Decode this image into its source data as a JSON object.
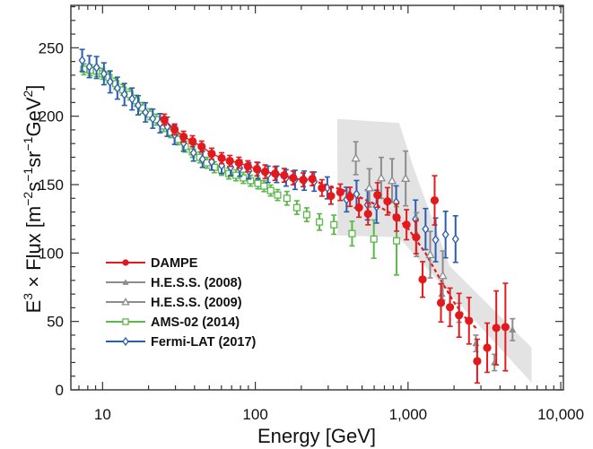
{
  "chart_data": {
    "type": "scatter",
    "title": "",
    "xlabel": "Energy [GeV]",
    "ylabel": {
      "base": "E",
      "exp": "3",
      "mid": " × Flux [m",
      "u1": "−2",
      "s": "s",
      "u2": "−1",
      "sr": "sr",
      "u3": "−1",
      "gev": "GeV",
      "u4": "2",
      "end": "]"
    },
    "xscale": "log",
    "xlim": [
      6.2,
      10400
    ],
    "ylim": [
      0,
      281
    ],
    "grid": false,
    "legend_position": "lower-left",
    "x_ticks": [
      {
        "value": 10,
        "label": "10"
      },
      {
        "value": 100,
        "label": "100"
      },
      {
        "value": 1000,
        "label": "1,000"
      },
      {
        "value": 10000,
        "label": "10,000"
      }
    ],
    "y_ticks": [
      {
        "value": 0,
        "label": "0"
      },
      {
        "value": 50,
        "label": "50"
      },
      {
        "value": 100,
        "label": "100"
      },
      {
        "value": 150,
        "label": "150"
      },
      {
        "value": 200,
        "label": "200"
      },
      {
        "value": 250,
        "label": "250"
      }
    ],
    "band": {
      "name": "H.E.S.S. systematic band",
      "color": "#e3e3e3",
      "polygon": [
        [
          344,
          198
        ],
        [
          875,
          195
        ],
        [
          1089,
          162
        ],
        [
          1870,
          90.5
        ],
        [
          6440,
          30.8
        ],
        [
          6440,
          5.2
        ],
        [
          864,
          111.5
        ],
        [
          346,
          112.9
        ]
      ]
    },
    "series": [
      {
        "name": "DAMPE",
        "color": "#e3191c",
        "marker": "filled-circle",
        "points": [
          [
            25.4,
            197.5,
            4
          ],
          [
            29.6,
            190.3,
            4
          ],
          [
            33.9,
            185.0,
            4
          ],
          [
            38.8,
            181.7,
            4
          ],
          [
            44.5,
            177.8,
            4
          ],
          [
            51.8,
            172.6,
            4
          ],
          [
            60.2,
            169.3,
            4
          ],
          [
            68.1,
            167.3,
            4
          ],
          [
            78.1,
            166.0,
            4
          ],
          [
            89.4,
            163.4,
            4
          ],
          [
            102.5,
            161.4,
            5
          ],
          [
            115.9,
            159.4,
            5
          ],
          [
            134.8,
            158.1,
            5
          ],
          [
            154.6,
            156.8,
            5
          ],
          [
            177.1,
            154.9,
            5
          ],
          [
            205.9,
            153.5,
            5
          ],
          [
            236.2,
            154.2,
            5
          ],
          [
            273,
            147.6,
            6
          ],
          [
            313,
            141.7,
            6
          ],
          [
            360,
            144.4,
            6
          ],
          [
            417,
            141.1,
            7
          ],
          [
            477,
            133.2,
            7
          ],
          [
            547,
            128.6,
            8
          ],
          [
            631,
            142.4,
            9
          ],
          [
            733,
            137.8,
            10
          ],
          [
            841,
            126.0,
            10
          ],
          [
            977,
            120.7,
            11
          ],
          [
            1129,
            111.5,
            12
          ],
          [
            1245,
            80.7,
            13
          ],
          [
            1493,
            138.5,
            18
          ],
          [
            1642,
            63.6,
            14
          ],
          [
            1882,
            60.4,
            14
          ],
          [
            2158,
            54.5,
            16
          ],
          [
            2506,
            50.5,
            17
          ],
          [
            2836,
            21.0,
            16
          ],
          [
            3297,
            30.8,
            18
          ],
          [
            3781,
            45.3,
            27
          ],
          [
            4339,
            45.9,
            32
          ]
        ]
      },
      {
        "name": "H.E.S.S. (2008)",
        "color": "#8c8c8c",
        "marker": "filled-triangle",
        "points": [
          [
            1663,
            70.2,
            7
          ],
          [
            2158,
            56.4,
            7
          ],
          [
            2780,
            34,
            6
          ],
          [
            3680,
            20,
            6
          ],
          [
            4830,
            44,
            8
          ]
        ]
      },
      {
        "name": "H.E.S.S. (2009)",
        "color": "#8c8c8c",
        "marker": "open-triangle",
        "points": [
          [
            455,
            169.3,
            12
          ],
          [
            558,
            147.6,
            14
          ],
          [
            667,
            154.9,
            15
          ],
          [
            786,
            152.9,
            16
          ],
          [
            964,
            154.5,
            20
          ],
          [
            1136,
            113.5,
            16
          ],
          [
            1396,
            98.8,
            17
          ],
          [
            1688,
            83.5,
            18
          ]
        ]
      },
      {
        "name": "AMS-02 (2014)",
        "color": "#5cb84a",
        "marker": "open-square",
        "points": [
          [
            7.54,
            234.3,
            4
          ],
          [
            8.3,
            233.6,
            4
          ],
          [
            9.13,
            233.0,
            4
          ],
          [
            10.0,
            231.0,
            4
          ],
          [
            11.0,
            228.3,
            4
          ],
          [
            12.2,
            223.8,
            4
          ],
          [
            13.6,
            219.2,
            4
          ],
          [
            15.1,
            215.9,
            4
          ],
          [
            16.6,
            211.3,
            4
          ],
          [
            18.3,
            206.0,
            4
          ],
          [
            20.4,
            201.4,
            4
          ],
          [
            22.5,
            197.5,
            4
          ],
          [
            25.1,
            192.9,
            4
          ],
          [
            28.0,
            188.3,
            4
          ],
          [
            31.2,
            183.1,
            4
          ],
          [
            34.8,
            177.8,
            4
          ],
          [
            38.8,
            173.9,
            4
          ],
          [
            43.3,
            169.9,
            4
          ],
          [
            48.3,
            166.0,
            4
          ],
          [
            53.9,
            162.7,
            4
          ],
          [
            60.1,
            160.8,
            4
          ],
          [
            67.1,
            158.1,
            4
          ],
          [
            74.8,
            156.8,
            4
          ],
          [
            83.5,
            154.9,
            4
          ],
          [
            93.1,
            152.9,
            4
          ],
          [
            104,
            150.9,
            4
          ],
          [
            114,
            148.9,
            4
          ],
          [
            126,
            145.7,
            4
          ],
          [
            140,
            142.4,
            4
          ],
          [
            161,
            140.0,
            5
          ],
          [
            187,
            133.2,
            5
          ],
          [
            217,
            128.0,
            5
          ],
          [
            263,
            122.7,
            6
          ],
          [
            327,
            120.7,
            7
          ],
          [
            430,
            114.2,
            9
          ],
          [
            597,
            110.2,
            14
          ],
          [
            841,
            108.9,
            25
          ]
        ]
      },
      {
        "name": "Fermi-LAT (2017)",
        "color": "#2a5db0",
        "marker": "open-diamond",
        "points": [
          [
            7.35,
            240.8,
            8
          ],
          [
            8.19,
            236.2,
            8
          ],
          [
            9.13,
            235.6,
            8
          ],
          [
            10.2,
            231.0,
            8
          ],
          [
            11.2,
            225.1,
            8
          ],
          [
            12.5,
            220.5,
            8
          ],
          [
            13.9,
            215.9,
            8
          ],
          [
            15.6,
            212.6,
            8
          ],
          [
            17.1,
            208.0,
            7
          ],
          [
            19.1,
            202.8,
            7
          ],
          [
            21.3,
            198.2,
            7
          ],
          [
            23.8,
            194.9,
            7
          ],
          [
            26.5,
            192.3,
            7
          ],
          [
            29.6,
            186.4,
            7
          ],
          [
            33.9,
            180.4,
            6
          ],
          [
            39.4,
            173.2,
            6
          ],
          [
            45.1,
            168.6,
            6
          ],
          [
            51.8,
            166.7,
            6
          ],
          [
            60.2,
            164.0,
            6
          ],
          [
            69.0,
            162.7,
            6
          ],
          [
            79.1,
            162.1,
            6
          ],
          [
            90.7,
            160.1,
            6
          ],
          [
            104,
            160.1,
            6
          ],
          [
            121,
            157.5,
            6
          ],
          [
            138,
            157.5,
            6
          ],
          [
            159,
            154.9,
            6
          ],
          [
            182,
            153.5,
            7
          ],
          [
            209,
            152.9,
            7
          ],
          [
            243,
            152.2,
            7
          ],
          [
            296,
            147.6,
            8
          ],
          [
            396,
            139.1,
            9
          ],
          [
            460,
            143.0,
            10
          ],
          [
            543,
            135.2,
            11
          ],
          [
            622,
            133.9,
            12
          ],
          [
            836,
            137.1,
            12
          ],
          [
            1120,
            124.7,
            14
          ],
          [
            1302,
            117.5,
            15
          ],
          [
            1515,
            109.6,
            16
          ],
          [
            1760,
            113.5,
            17
          ],
          [
            2046,
            110.2,
            17
          ]
        ]
      }
    ],
    "fit_line": {
      "name": "DAMPE fit",
      "color": "#e3191c",
      "style": "dashed",
      "points": [
        [
          236,
          153
        ],
        [
          400,
          145
        ],
        [
          600,
          136
        ],
        [
          800,
          128
        ],
        [
          1000,
          118
        ],
        [
          1300,
          100
        ],
        [
          1600,
          82
        ],
        [
          2000,
          64
        ],
        [
          2400,
          52
        ],
        [
          2800,
          45
        ]
      ]
    },
    "legend": [
      {
        "label": "DAMPE",
        "series": 0
      },
      {
        "label": "H.E.S.S. (2008)",
        "series": 1
      },
      {
        "label": "H.E.S.S. (2009)",
        "series": 2
      },
      {
        "label": "AMS-02 (2014)",
        "series": 3
      },
      {
        "label": "Fermi-LAT (2017)",
        "series": 4
      }
    ]
  }
}
